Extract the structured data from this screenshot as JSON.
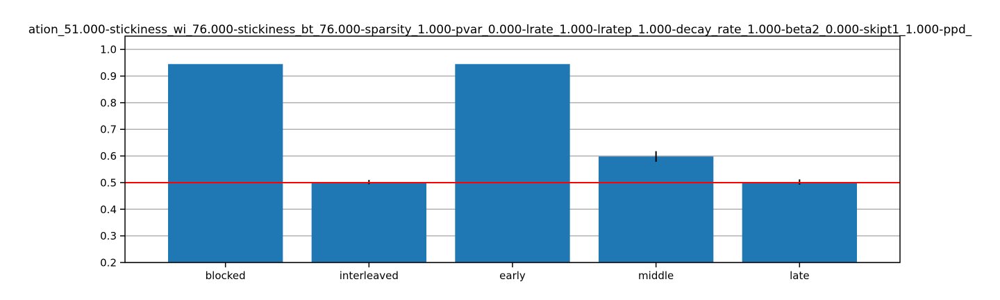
{
  "chart_data": {
    "type": "bar",
    "title": "ation_51.000-stickiness_wi_76.000-stickiness_bt_76.000-sparsity_1.000-pvar_0.000-lrate_1.000-lratep_1.000-decay_rate_1.000-beta2_0.000-skipt1_1.000-ppd_",
    "xlabel": "",
    "ylabel": "",
    "categories": [
      "blocked",
      "interleaved",
      "early",
      "middle",
      "late"
    ],
    "values": [
      0.945,
      0.502,
      0.945,
      0.598,
      0.502
    ],
    "errors": [
      0.0,
      0.008,
      0.0,
      0.02,
      0.01
    ],
    "ylim": [
      0.2,
      1.05
    ],
    "yticks": [
      0.2,
      0.3,
      0.4,
      0.5,
      0.6,
      0.7,
      0.8,
      0.9,
      1.0
    ],
    "ytick_labels": [
      "0.2",
      "0.3",
      "0.4",
      "0.5",
      "0.6",
      "0.7",
      "0.8",
      "0.9",
      "1.0"
    ],
    "reference_line": 0.5,
    "grid": "horizontal",
    "colors": {
      "bar": "#1f77b4",
      "reference_line": "#ff0000",
      "grid": "#b0b0b0",
      "error_bar": "#000000"
    }
  }
}
